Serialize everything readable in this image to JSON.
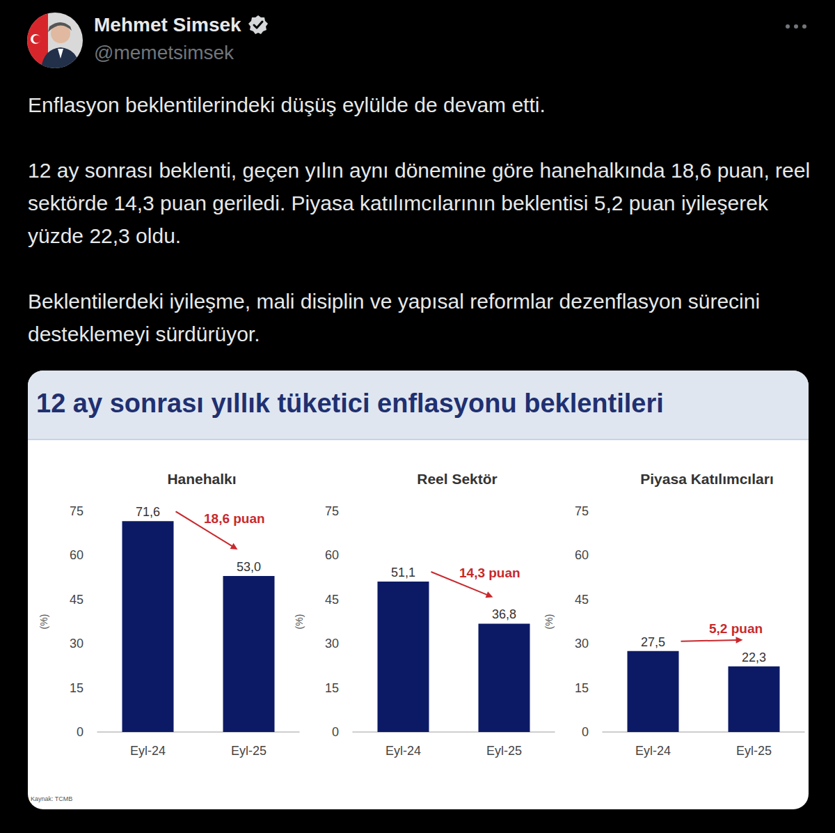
{
  "tweet": {
    "author": "Mehmet Simsek",
    "handle": "@memetsimsek",
    "paragraphs": [
      "Enflasyon beklentilerindeki düşüş eylülde de devam etti.",
      "12 ay sonrası beklenti, geçen yılın aynı dönemine göre hanehalkında 18,6 puan, reel sektörde 14,3 puan geriledi. Piyasa katılımcılarının beklentisi 5,2 puan iyileşerek yüzde 22,3 oldu.",
      "Beklentilerdeki iyileşme, mali disiplin ve yapısal reformlar dezenflasyon sürecini desteklemeyi sürdürüyor."
    ]
  },
  "title": "12 ay sonrası yıllık tüketici enflasyonu beklentileri",
  "source": "Kaynak: TCMB",
  "chart_data": [
    {
      "type": "bar",
      "title": "Hanehalkı",
      "categories": [
        "Eyl-24",
        "Eyl-25"
      ],
      "values": [
        71.6,
        53.0
      ],
      "value_labels": [
        "71,6",
        "53,0"
      ],
      "color": "#0c1a66",
      "ylabel": "(%)",
      "ylim": [
        0,
        75
      ],
      "yticks": [
        0,
        15,
        30,
        45,
        60,
        75
      ],
      "grid": false,
      "data_labels": true,
      "annotation": "18,6 puan"
    },
    {
      "type": "bar",
      "title": "Reel Sektör",
      "categories": [
        "Eyl-24",
        "Eyl-25"
      ],
      "values": [
        51.1,
        36.8
      ],
      "value_labels": [
        "51,1",
        "36,8"
      ],
      "color": "#0c1a66",
      "ylabel": "(%)",
      "ylim": [
        0,
        75
      ],
      "yticks": [
        0,
        15,
        30,
        45,
        60,
        75
      ],
      "grid": false,
      "data_labels": true,
      "annotation": "14,3 puan"
    },
    {
      "type": "bar",
      "title": "Piyasa Katılımcıları",
      "categories": [
        "Eyl-24",
        "Eyl-25"
      ],
      "values": [
        27.5,
        22.3
      ],
      "value_labels": [
        "27,5",
        "22,3"
      ],
      "color": "#0c1a66",
      "ylabel": "(%)",
      "ylim": [
        0,
        75
      ],
      "yticks": [
        0,
        15,
        30,
        45,
        60,
        75
      ],
      "grid": false,
      "data_labels": true,
      "annotation": "5,2 puan"
    }
  ]
}
